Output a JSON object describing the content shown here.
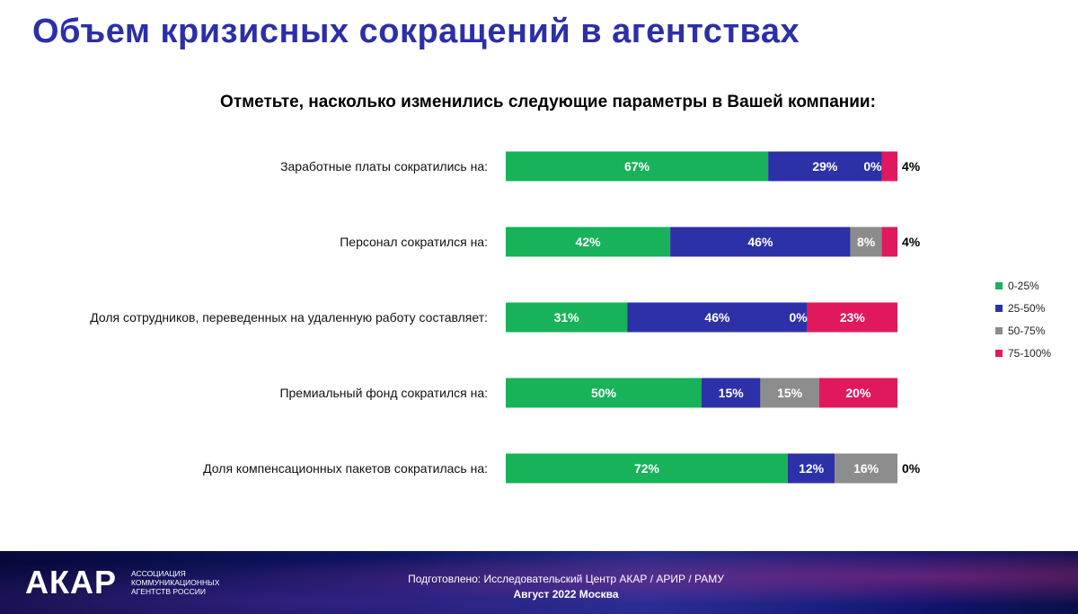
{
  "title": "Объем кризисных сокращений в агентствах",
  "subtitle": "Отметьте, насколько изменились следующие параметры в Вашей компании:",
  "colors": {
    "0-25%": "#18b25a",
    "25-50%": "#2c31a8",
    "50-75%": "#8c8c8c",
    "75-100%": "#e0185e"
  },
  "chart_data": {
    "type": "bar",
    "orientation": "horizontal-stacked",
    "categories": [
      "Заработные платы сократились на:",
      "Персонал сократился на:",
      "Доля сотрудников, переведенных на удаленную работу составляет:",
      "Премиальный фонд сократился на:",
      "Доля компенсационных пакетов сократилась на:"
    ],
    "series": [
      {
        "name": "0-25%",
        "values": [
          67,
          42,
          31,
          50,
          72
        ],
        "labels": [
          "67%",
          "42%",
          "31%",
          "50%",
          "72%"
        ]
      },
      {
        "name": "25-50%",
        "values": [
          29,
          46,
          46,
          15,
          12
        ],
        "labels": [
          "29%",
          "46%",
          "46%",
          "15%",
          "12%"
        ]
      },
      {
        "name": "50-75%",
        "values": [
          0,
          8,
          0,
          15,
          16
        ],
        "labels": [
          "0%",
          "8%",
          "0%",
          "15%",
          "16%"
        ]
      },
      {
        "name": "75-100%",
        "values": [
          4,
          4,
          23,
          20,
          0
        ],
        "labels": [
          "4%",
          "4%",
          "23%",
          "20%",
          "0%"
        ]
      }
    ],
    "legend_position": "right",
    "grid": false
  },
  "footer": {
    "logo": "АКАР",
    "logo_sub_1": "Ассоциация",
    "logo_sub_2": "коммуникационных",
    "logo_sub_3": "агентств России",
    "line1": "Подготовлено: Исследовательский Центр АКАР / АРИР / РАМУ",
    "line2": "Август 2022 Москва"
  }
}
